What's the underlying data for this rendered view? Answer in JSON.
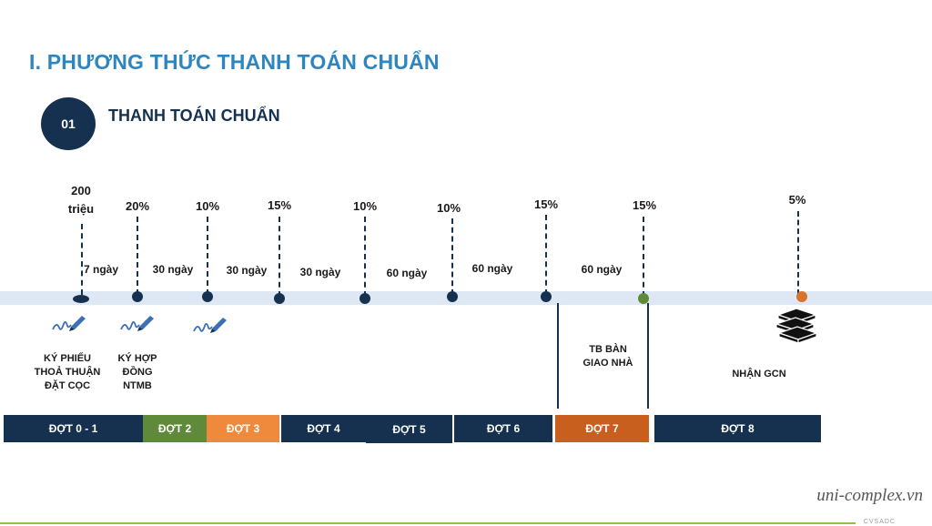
{
  "title": "I. PHƯƠNG THỨC THANH TOÁN CHUẨN",
  "section": {
    "number": "01",
    "title": "THANH TOÁN CHUẨN"
  },
  "milestones": [
    {
      "amount_line1": "200",
      "amount_line2": "triệu"
    },
    {
      "amount": "20%"
    },
    {
      "amount": "10%"
    },
    {
      "amount": "15%"
    },
    {
      "amount": "10%"
    },
    {
      "amount": "10%"
    },
    {
      "amount": "15%"
    },
    {
      "amount": "15%"
    },
    {
      "amount": "5%"
    }
  ],
  "intervals": [
    "7 ngày",
    "30 ngày",
    "30 ngày",
    "30 ngày",
    "60 ngày",
    "60 ngày",
    "60 ngày"
  ],
  "events": {
    "sign_deposit": "KÝ PHIẾU THOẢ THUẬN ĐẶT CỌC",
    "sign_contract": "KÝ HỢP ĐỒNG NTMB",
    "handover": "TB BÀN GIAO NHÀ",
    "certificate": "NHẬN GCN"
  },
  "stages": [
    {
      "label": "ĐỢT 0 - 1",
      "color": "#16304f"
    },
    {
      "label": "ĐỢT 2",
      "color": "#5f8a3a"
    },
    {
      "label": "ĐỢT 3",
      "color": "#ef8a3c"
    },
    {
      "label": "ĐỢT 4",
      "color": "#16304f"
    },
    {
      "label": "ĐỢT 5",
      "color": "#16304f"
    },
    {
      "label": "ĐỢT 6",
      "color": "#16304f"
    },
    {
      "label": "ĐỢT 7",
      "color": "#c85f1e"
    },
    {
      "label": "ĐỢT 8",
      "color": "#16304f"
    }
  ],
  "colors": {
    "navy": "#16304f",
    "green_dot": "#5f8a3a",
    "orange_dot": "#d9722b"
  },
  "icons": [
    "signature-pen-icon",
    "books-stack-icon"
  ],
  "watermark": "uni-complex.vn",
  "corner_text": "CVSADC"
}
